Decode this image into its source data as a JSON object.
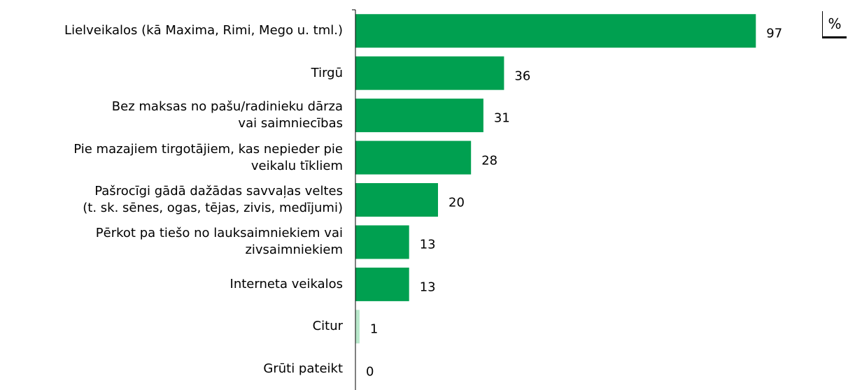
{
  "chart_data": {
    "type": "hbar",
    "unit": "%",
    "categories": [
      "Lielveikalos (kā Maxima, Rimi, Mego u. tml.)",
      "Tirgū",
      "Bez maksas no pašu/radinieku dārza\nvai saimniecības",
      "Pie mazajiem tirgotājiem, kas nepieder pie\nveikalu tīkliem",
      "Pašrocīgi gādā dažādas savvaļas veltes\n(t. sk. sēnes, ogas, tējas, zivis, medījumi)",
      "Pērkot pa tiešo no lauksaimniekiem vai\nzivsaimniekiem",
      "Interneta veikalos",
      "Citur",
      "Grūti pateikt"
    ],
    "values": [
      97,
      36,
      31,
      28,
      20,
      13,
      13,
      1,
      0
    ],
    "colors": [
      "#00a050",
      "#00a050",
      "#00a050",
      "#00a050",
      "#00a050",
      "#00a050",
      "#00a050",
      "#b8e8cb",
      "#00a050"
    ],
    "xlim": [
      0,
      100
    ]
  }
}
